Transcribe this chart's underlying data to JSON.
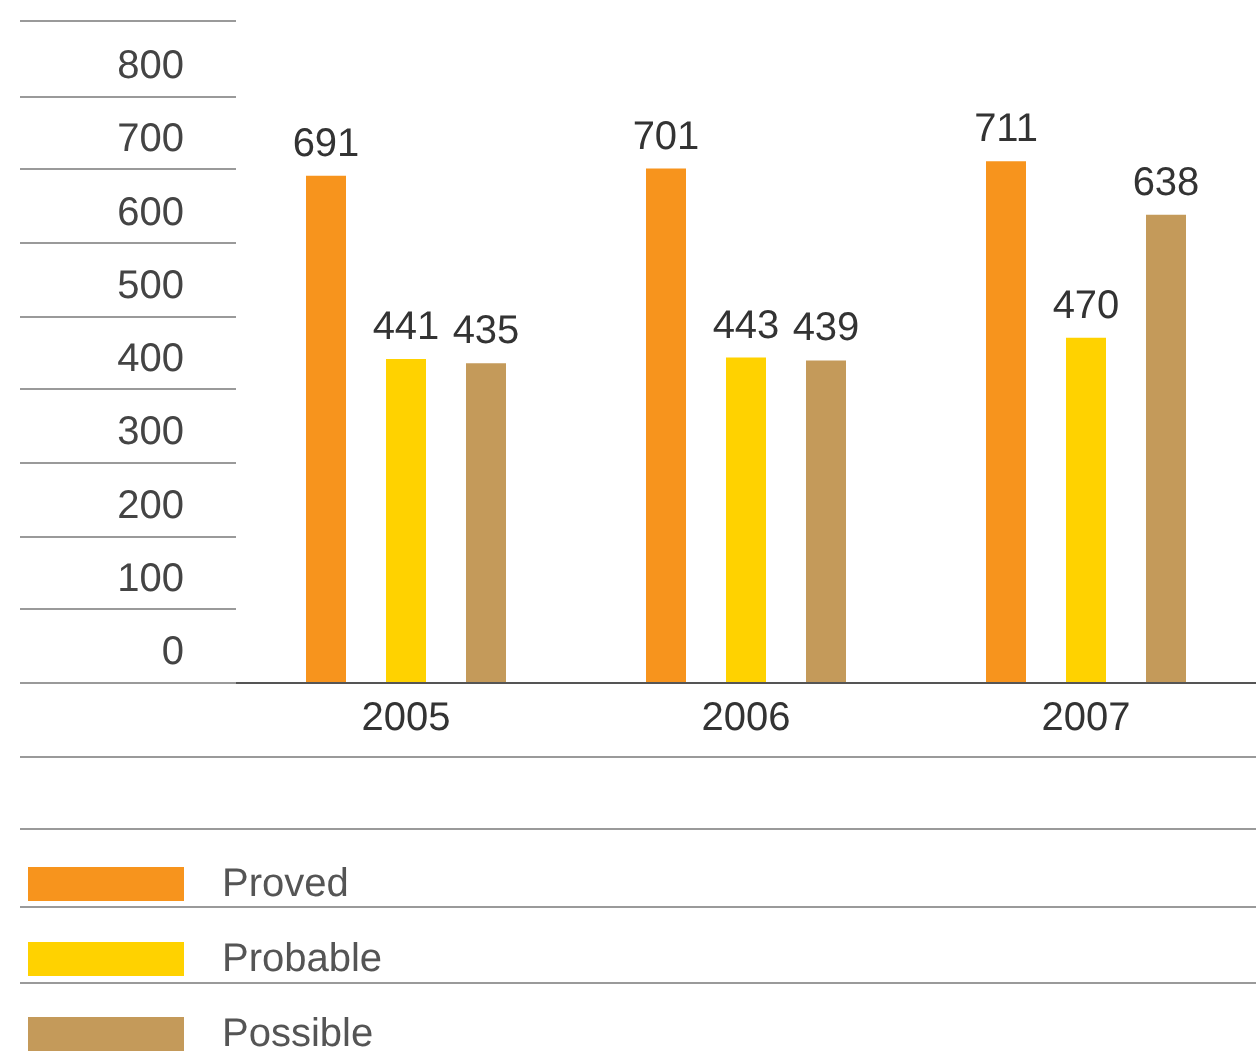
{
  "chart_data": {
    "type": "bar",
    "categories": [
      "2005",
      "2006",
      "2007"
    ],
    "series": [
      {
        "name": "Proved",
        "color": "#f7941d",
        "values": [
          691,
          701,
          711
        ]
      },
      {
        "name": "Probable",
        "color": "#ffd200",
        "values": [
          441,
          443,
          470
        ]
      },
      {
        "name": "Possible",
        "color": "#c49a5a",
        "values": [
          435,
          439,
          638
        ]
      }
    ],
    "ylim": [
      0,
      800
    ],
    "yticks": [
      0,
      100,
      200,
      300,
      400,
      500,
      600,
      700,
      800
    ],
    "data_labels": true,
    "legend": "bottom left"
  }
}
